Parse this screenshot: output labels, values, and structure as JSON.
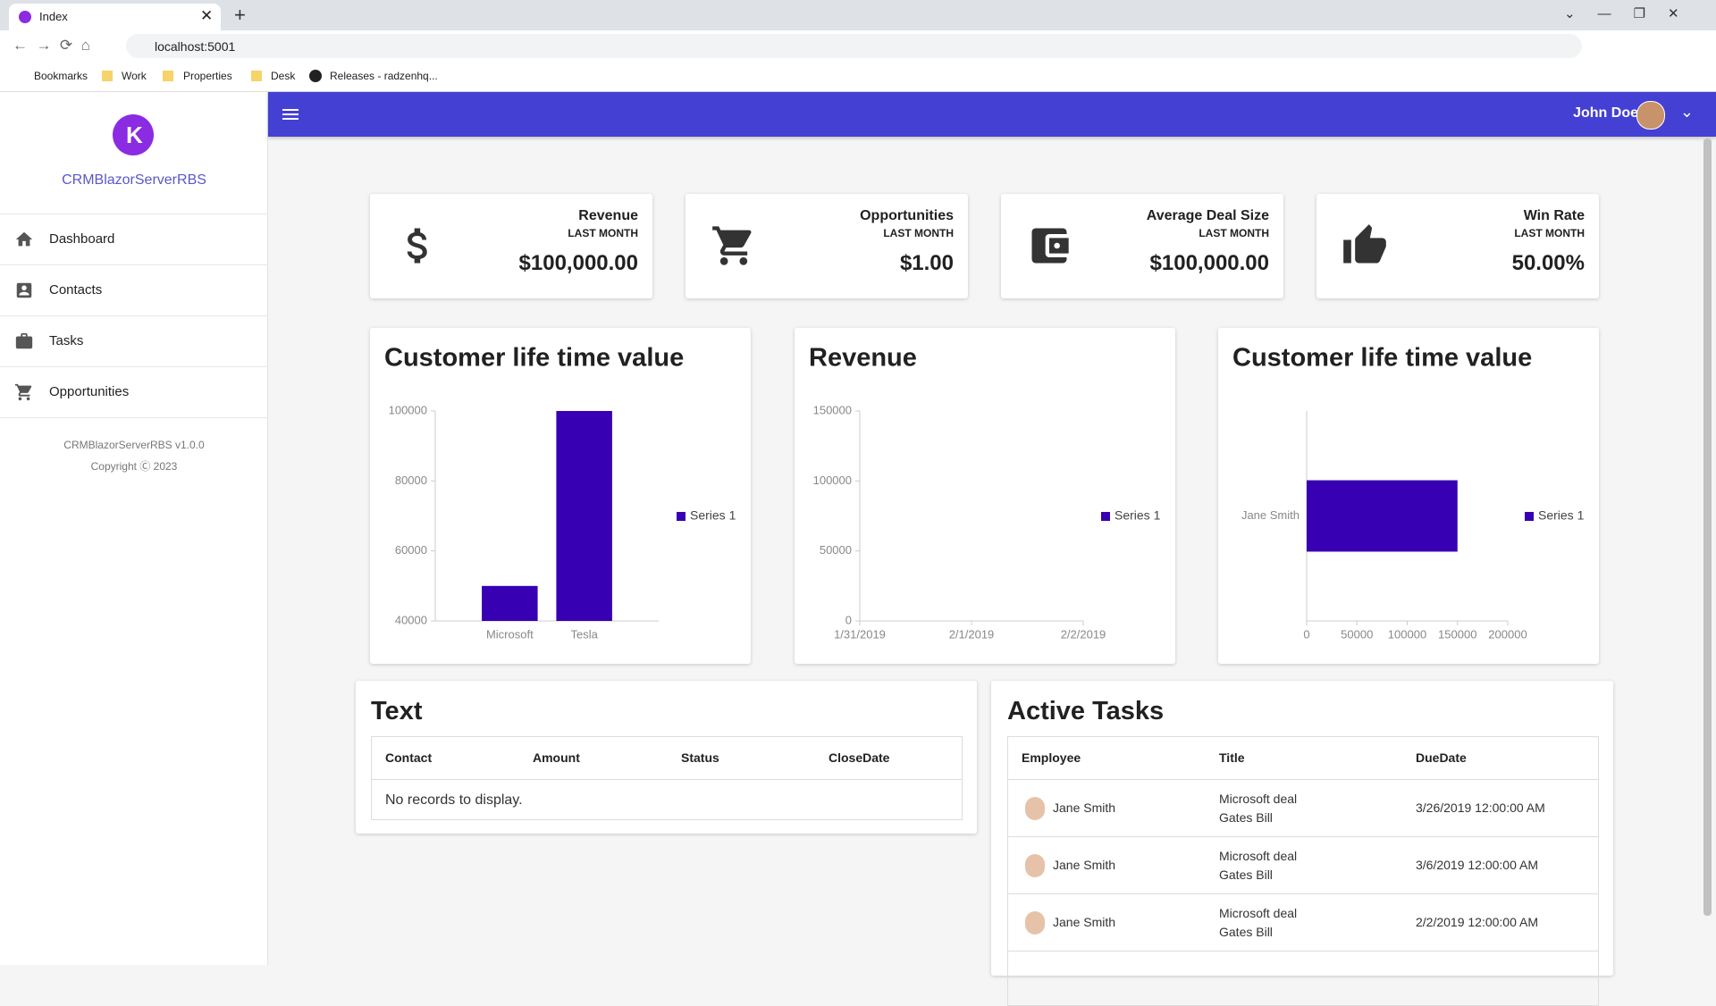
{
  "browser": {
    "tab_title": "Index",
    "url": "localhost:5001",
    "bookmarks": [
      "Bookmarks",
      "Work",
      "Properties",
      "Desk",
      "Releases - radzenhq..."
    ]
  },
  "sidebar": {
    "app_name": "CRMBlazorServerRBS",
    "menu": [
      "Dashboard",
      "Contacts",
      "Tasks",
      "Opportunities"
    ],
    "version": "CRMBlazorServerRBS v1.0.0",
    "copyright": "Copyright Ⓒ 2023"
  },
  "header": {
    "user": "John Doe"
  },
  "cards": [
    {
      "title": "Revenue",
      "subtitle": "LAST MONTH",
      "value": "$100,000.00"
    },
    {
      "title": "Opportunities",
      "subtitle": "LAST MONTH",
      "value": "$1.00"
    },
    {
      "title": "Average Deal Size",
      "subtitle": "LAST MONTH",
      "value": "$100,000.00"
    },
    {
      "title": "Win Rate",
      "subtitle": "LAST MONTH",
      "value": "50.00%"
    }
  ],
  "charts": [
    {
      "type": "bar",
      "title": "Customer life time value",
      "categories": [
        "Microsoft",
        "Tesla"
      ],
      "series": [
        {
          "name": "Series 1",
          "color": "#3700b3",
          "values": [
            50000,
            100000
          ]
        }
      ],
      "ylim": [
        40000,
        100000
      ],
      "yticks": [
        40000,
        60000,
        80000,
        100000
      ]
    },
    {
      "type": "line",
      "title": "Revenue",
      "x": [
        "1/31/2019",
        "2/1/2019",
        "2/2/2019"
      ],
      "series": [
        {
          "name": "Series 1",
          "color": "#3700b3",
          "values": [
            null,
            null,
            null
          ]
        }
      ],
      "ylim": [
        0,
        150000
      ],
      "yticks": [
        0,
        50000,
        100000,
        150000
      ]
    },
    {
      "type": "hbar",
      "title": "Customer life time value",
      "categories": [
        "Jane Smith"
      ],
      "series": [
        {
          "name": "Series 1",
          "color": "#3700b3",
          "values": [
            150000
          ]
        }
      ],
      "xlim": [
        0,
        200000
      ],
      "xticks": [
        0,
        50000,
        100000,
        150000,
        200000
      ]
    }
  ],
  "text_grid": {
    "title": "Text",
    "columns": [
      "Contact",
      "Amount",
      "Status",
      "CloseDate"
    ],
    "empty": "No records to display."
  },
  "tasks": {
    "title": "Active Tasks",
    "columns": [
      "Employee",
      "Title",
      "DueDate"
    ],
    "rows": [
      {
        "employee": "Jane Smith",
        "title": "Microsoft deal",
        "subtitle": "Gates Bill",
        "due": "3/26/2019 12:00:00 AM"
      },
      {
        "employee": "Jane Smith",
        "title": "Microsoft deal",
        "subtitle": "Gates Bill",
        "due": "3/6/2019 12:00:00 AM"
      },
      {
        "employee": "Jane Smith",
        "title": "Microsoft deal",
        "subtitle": "Gates Bill",
        "due": "2/2/2019 12:00:00 AM"
      }
    ]
  }
}
